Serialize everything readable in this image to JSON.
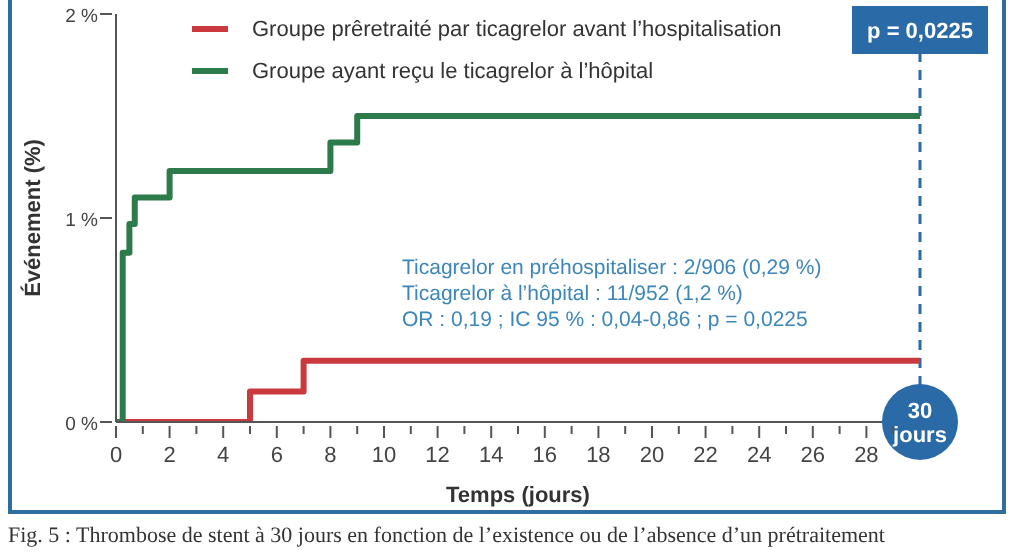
{
  "chart_data": {
    "type": "step",
    "xlabel": "Temps (jours)",
    "ylabel": "Événement (%)",
    "xlim": [
      0,
      30
    ],
    "ylim": [
      0,
      2
    ],
    "xticks": [
      0,
      {
        "value": 1,
        "label": null
      },
      2,
      {
        "value": 3,
        "label": null
      },
      4,
      {
        "value": 5,
        "label": null
      },
      6,
      {
        "value": 7,
        "label": null
      },
      8,
      {
        "value": 9,
        "label": null
      },
      10,
      {
        "value": 11,
        "label": null
      },
      12,
      {
        "value": 13,
        "label": null
      },
      14,
      {
        "value": 15,
        "label": null
      },
      16,
      {
        "value": 17,
        "label": null
      },
      18,
      {
        "value": 19,
        "label": null
      },
      20,
      {
        "value": 21,
        "label": null
      },
      22,
      {
        "value": 23,
        "label": null
      },
      24,
      {
        "value": 25,
        "label": null
      },
      26,
      {
        "value": 27,
        "label": null
      },
      28,
      {
        "value": 29,
        "label": null
      }
    ],
    "yticks": [
      {
        "value": 0,
        "label": "0 %"
      },
      {
        "value": 1,
        "label": "1 %"
      },
      {
        "value": 2,
        "label": "2 %"
      }
    ],
    "grid": false,
    "legend": "top left",
    "line_style": "solid",
    "marker": "none",
    "series": [
      {
        "name": "Groupe prêretraité par ticagrelor avant l’hospitalisation",
        "color": "#c9393e",
        "x": [
          0,
          5,
          7,
          30
        ],
        "values": [
          0,
          0.15,
          0.3,
          0.3
        ]
      },
      {
        "name": "Groupe ayant reçu le ticagrelor à l’hôpital",
        "color": "#2d7a4a",
        "x": [
          0,
          0.25,
          0.5,
          0.7,
          2,
          8,
          9,
          30
        ],
        "values": [
          0,
          0.83,
          0.97,
          1.1,
          1.23,
          1.37,
          1.5,
          1.5
        ]
      }
    ],
    "ref_lines": [
      {
        "axis": "x",
        "value": 30,
        "color": "#2a6aa6",
        "line_style": "dashed"
      }
    ],
    "annotations": [
      "Ticagrelor en préhospitaliser : 2/906 (0,29 %)",
      "Ticagrelor à l’hôpital : 11/952 (1,2 %)",
      "OR : 0,19 ; IC 95 % : 0,04-0,86 ; p = 0,0225",
      {
        "text": "p = 0,0225",
        "x": 30,
        "y": 2
      },
      {
        "text": "30 jours",
        "x": 30,
        "y": 0
      },
      "Fig. 5 : Thrombose de stent à 30 jours en fonction de l’existence ou de l’absence d’un prétraitement"
    ]
  }
}
